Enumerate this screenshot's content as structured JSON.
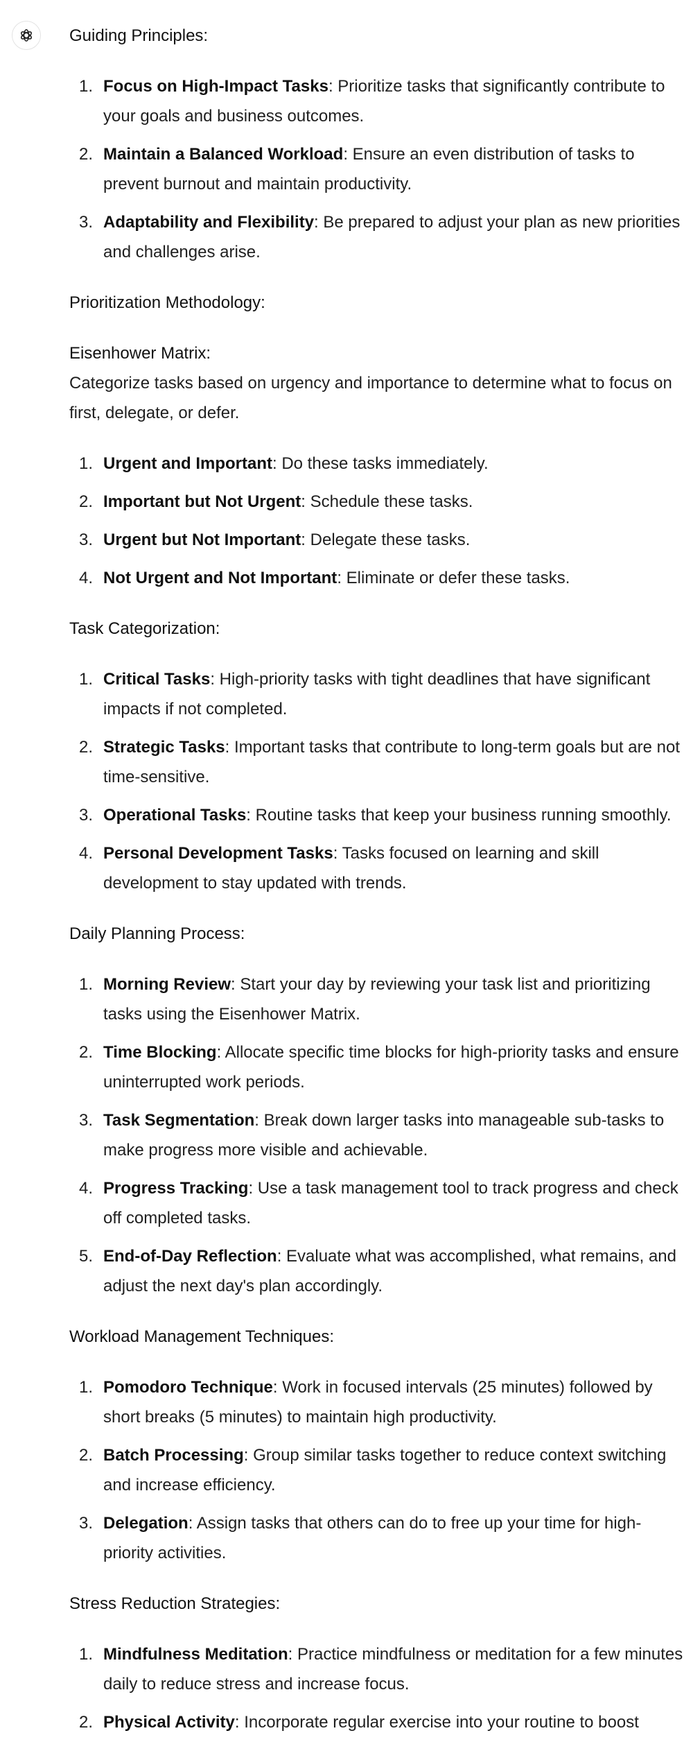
{
  "avatar": {
    "icon": "openai-logo-icon"
  },
  "sections": {
    "guiding": {
      "title": "Guiding Principles:",
      "items": [
        {
          "num": "1.",
          "term": "Focus on High-Impact Tasks",
          "desc": ": Prioritize tasks that significantly contribute to your goals and business outcomes."
        },
        {
          "num": "2.",
          "term": "Maintain a Balanced Workload",
          "desc": ": Ensure an even distribution of tasks to prevent burnout and maintain productivity."
        },
        {
          "num": "3.",
          "term": "Adaptability and Flexibility",
          "desc": ": Be prepared to adjust your plan as new priorities and challenges arise."
        }
      ]
    },
    "prioritization": {
      "title": "Prioritization Methodology:",
      "subtitle": "Eisenhower Matrix",
      "subtitle_suffix": ":",
      "description": "Categorize tasks based on urgency and importance to determine what to focus on first, delegate, or defer.",
      "items": [
        {
          "num": "1.",
          "term": "Urgent and Important",
          "desc": ": Do these tasks immediately."
        },
        {
          "num": "2.",
          "term": "Important but Not Urgent",
          "desc": ": Schedule these tasks."
        },
        {
          "num": "3.",
          "term": "Urgent but Not Important",
          "desc": ": Delegate these tasks."
        },
        {
          "num": "4.",
          "term": "Not Urgent and Not Important",
          "desc": ": Eliminate or defer these tasks."
        }
      ]
    },
    "categorization": {
      "title": "Task Categorization:",
      "items": [
        {
          "num": "1.",
          "term": "Critical Tasks",
          "desc": ": High-priority tasks with tight deadlines that have significant impacts if not completed."
        },
        {
          "num": "2.",
          "term": "Strategic Tasks",
          "desc": ": Important tasks that contribute to long-term goals but are not time-sensitive."
        },
        {
          "num": "3.",
          "term": "Operational Tasks",
          "desc": ": Routine tasks that keep your business running smoothly."
        },
        {
          "num": "4.",
          "term": "Personal Development Tasks",
          "desc": ": Tasks focused on learning and skill development to stay updated with trends."
        }
      ]
    },
    "daily": {
      "title": "Daily Planning Process:",
      "items": [
        {
          "num": "1.",
          "term": "Morning Review",
          "desc": ": Start your day by reviewing your task list and prioritizing tasks using the Eisenhower Matrix."
        },
        {
          "num": "2.",
          "term": "Time Blocking",
          "desc": ": Allocate specific time blocks for high-priority tasks and ensure uninterrupted work periods."
        },
        {
          "num": "3.",
          "term": "Task Segmentation",
          "desc": ": Break down larger tasks into manageable sub-tasks to make progress more visible and achievable."
        },
        {
          "num": "4.",
          "term": "Progress Tracking",
          "desc": ": Use a task management tool to track progress and check off completed tasks."
        },
        {
          "num": "5.",
          "term": "End-of-Day Reflection",
          "desc": ": Evaluate what was accomplished, what remains, and adjust the next day's plan accordingly."
        }
      ]
    },
    "workload": {
      "title": "Workload Management Techniques:",
      "items": [
        {
          "num": "1.",
          "term": "Pomodoro Technique",
          "desc": ": Work in focused intervals (25 minutes) followed by short breaks (5 minutes) to maintain high productivity."
        },
        {
          "num": "2.",
          "term": "Batch Processing",
          "desc": ": Group similar tasks together to reduce context switching and increase efficiency."
        },
        {
          "num": "3.",
          "term": "Delegation",
          "desc": ": Assign tasks that others can do to free up your time for high-priority activities."
        }
      ]
    },
    "stress": {
      "title": "Stress Reduction Strategies:",
      "items": [
        {
          "num": "1.",
          "term": "Mindfulness Meditation",
          "desc": ": Practice mindfulness or meditation for a few minutes daily to reduce stress and increase focus."
        },
        {
          "num": "2.",
          "term": "Physical Activity",
          "desc": ": Incorporate regular exercise into your routine to boost"
        }
      ]
    }
  }
}
